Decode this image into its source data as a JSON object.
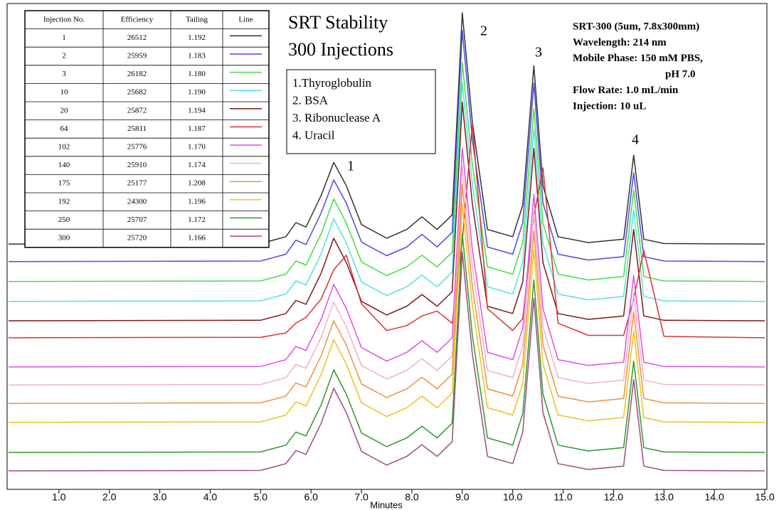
{
  "chart_data": {
    "type": "line",
    "title": [
      "SRT Stability",
      "300 Injections"
    ],
    "peak_legend": [
      "1.Thyroglobulin",
      "2. BSA",
      "3. Ribonuclease A",
      "4. Uracil"
    ],
    "conditions": [
      "SRT-300 (5um, 7.8x300mm)",
      "Wavelength: 214 nm",
      "Mobile Phase: 150 mM PBS,",
      "pH 7.0",
      "Flow Rate: 1.0 mL/min",
      "Injection: 10 uL"
    ],
    "peak_labels": [
      "1",
      "2",
      "3",
      "4"
    ],
    "x_label": "Minutes",
    "table": {
      "columns": [
        "Injection No.",
        "Efficiency",
        "Tailing",
        "Line"
      ],
      "rows": [
        [
          "1",
          "26512",
          "1.192"
        ],
        [
          "2",
          "25959",
          "1.183"
        ],
        [
          "3",
          "26182",
          "1.180"
        ],
        [
          "10",
          "25682",
          "1.190"
        ],
        [
          "20",
          "25872",
          "1.194"
        ],
        [
          "64",
          "25811",
          "1.187"
        ],
        [
          "102",
          "25776",
          "1.170"
        ],
        [
          "140",
          "25910",
          "1.174"
        ],
        [
          "175",
          "25177",
          "1.208"
        ],
        [
          "192",
          "24300",
          "1.196"
        ],
        [
          "250",
          "25707",
          "1.172"
        ],
        [
          "300",
          "25720",
          "1.166"
        ]
      ]
    },
    "x": [
      0,
      5.0,
      5.5,
      5.7,
      5.9,
      6.2,
      6.45,
      6.7,
      7.0,
      7.5,
      7.9,
      8.2,
      8.5,
      8.8,
      9.0,
      9.2,
      9.5,
      10.0,
      10.2,
      10.42,
      10.6,
      10.9,
      11.5,
      12.2,
      12.4,
      12.6,
      13.0,
      15.0
    ],
    "xlim": [
      0,
      15
    ],
    "xticks": [
      {
        "value": 1,
        "label": "1.0"
      },
      {
        "value": 2,
        "label": "2.0"
      },
      {
        "value": 3,
        "label": "3.0"
      },
      {
        "value": 4,
        "label": "4.0"
      },
      {
        "value": 5,
        "label": "5.0"
      },
      {
        "value": 6,
        "label": "6.0"
      },
      {
        "value": 7,
        "label": "7.0"
      },
      {
        "value": 8,
        "label": "8.0"
      },
      {
        "value": 9,
        "label": "9.0"
      },
      {
        "value": 10,
        "label": "10.0"
      },
      {
        "value": 11,
        "label": "11.0"
      },
      {
        "value": 12,
        "label": "12.0"
      },
      {
        "value": 13,
        "label": "13.0"
      },
      {
        "value": 14,
        "label": "14.0"
      },
      {
        "value": 15,
        "label": "15.0"
      }
    ],
    "ylim": [
      0,
      100
    ],
    "series": [
      {
        "color": "#333333",
        "values": [
          50.5,
          50.6,
          52,
          54.9,
          54,
          60.5,
          67.3,
          62.5,
          54.5,
          51.7,
          53.5,
          56.1,
          53.5,
          56.5,
          98.1,
          75.5,
          53.5,
          52,
          58.5,
          87.2,
          62.5,
          52,
          50.8,
          51.5,
          68.8,
          51.5,
          50.6,
          50.5
        ]
      },
      {
        "color": "#4a4ae8",
        "values": [
          46.9,
          47,
          48.4,
          51.3,
          50.4,
          56.9,
          63.7,
          58.9,
          50.9,
          48.1,
          49.9,
          52.5,
          49.9,
          52.9,
          94.5,
          71.9,
          49.9,
          48.4,
          54.9,
          83.6,
          58.9,
          48.4,
          47.2,
          47.9,
          65.2,
          47.9,
          47,
          46.9
        ]
      },
      {
        "color": "#44dd44",
        "values": [
          42.8,
          42.9,
          44.3,
          47,
          46.2,
          52.6,
          59.8,
          54.8,
          46.8,
          44,
          45.8,
          48.2,
          45.8,
          48.8,
          87.8,
          66.8,
          45.8,
          44.3,
          50.8,
          78.3,
          54.8,
          44.3,
          43.1,
          43.8,
          61.6,
          43.8,
          42.9,
          42.8
        ]
      },
      {
        "color": "#55e0e0",
        "values": [
          38.7,
          38.8,
          40.2,
          42.9,
          42.1,
          48.5,
          55.7,
          50.7,
          42.7,
          39.9,
          41.7,
          44.1,
          41.7,
          44.7,
          83.7,
          62.7,
          41.7,
          40.2,
          46.7,
          74.2,
          50.7,
          40.2,
          39,
          39.7,
          57.5,
          39.7,
          38.8,
          38.7
        ]
      },
      {
        "color": "#7a1a1a",
        "values": [
          34.7,
          34.8,
          36.2,
          38.9,
          38.1,
          44.5,
          51.7,
          46.7,
          38.7,
          35.9,
          37.7,
          40.1,
          37.7,
          40.7,
          79.7,
          58.7,
          37.7,
          36.2,
          42.7,
          70.2,
          46.7,
          36.2,
          35,
          35.7,
          53.5,
          35.7,
          34.8,
          34.7
        ]
      },
      {
        "color": "#e03030",
        "values": [
          31.2,
          31.3,
          32.2,
          34.2,
          35.4,
          39.2,
          45.2,
          48.2,
          38.2,
          32.7,
          33.7,
          35.7,
          36.7,
          34.2,
          51.2,
          75.2,
          37.2,
          32.7,
          35.2,
          56.2,
          66.2,
          34.2,
          31.7,
          31.7,
          39.2,
          49.2,
          31.5,
          31.2
        ]
      },
      {
        "color": "#e050e0",
        "values": [
          25.2,
          25.3,
          26.7,
          29.4,
          28.6,
          35,
          42.2,
          37.2,
          29.2,
          26.4,
          28.2,
          30.6,
          28.2,
          31.2,
          70.2,
          49.2,
          28.2,
          26.7,
          33.2,
          60.7,
          37.2,
          26.7,
          25.5,
          26.2,
          44,
          26.2,
          25.3,
          25.2
        ]
      },
      {
        "color": "#f0b0c8",
        "values": [
          21.5,
          21.6,
          23,
          25.7,
          24.9,
          31.3,
          38.5,
          33.5,
          25.5,
          22.7,
          24.5,
          26.9,
          24.5,
          27.5,
          66.5,
          45.5,
          24.5,
          23,
          29.5,
          57,
          33.5,
          23,
          21.8,
          22.5,
          40.3,
          22.5,
          21.6,
          21.5
        ]
      },
      {
        "color": "#f09040",
        "values": [
          17.7,
          17.8,
          19.2,
          21.9,
          21.1,
          27.5,
          34.7,
          29.7,
          21.7,
          18.9,
          20.7,
          23.1,
          20.7,
          23.7,
          62.7,
          41.7,
          20.7,
          19.2,
          25.7,
          53.2,
          29.7,
          19.2,
          18,
          18.7,
          36.5,
          18.7,
          17.8,
          17.7
        ]
      },
      {
        "color": "#f0c020",
        "values": [
          13.8,
          13.9,
          15.3,
          18,
          17.2,
          23.6,
          30.8,
          25.8,
          17.8,
          15,
          16.8,
          19.2,
          16.8,
          19.8,
          58.8,
          37.8,
          16.8,
          15.3,
          21.8,
          49.3,
          25.8,
          15.3,
          14.1,
          14.8,
          32.6,
          14.8,
          13.9,
          13.8
        ]
      },
      {
        "color": "#2a9a2a",
        "values": [
          7.6,
          7.7,
          9.1,
          11.8,
          11,
          17.4,
          24.6,
          19.6,
          11.6,
          8.8,
          10.6,
          13,
          10.6,
          13.6,
          52.6,
          31.6,
          10.6,
          9.1,
          15.6,
          43.1,
          19.6,
          9.1,
          7.9,
          8.6,
          26.4,
          8.6,
          7.7,
          7.6
        ]
      },
      {
        "color": "#a04a80",
        "values": [
          3.8,
          3.9,
          5.3,
          8,
          7.2,
          13.6,
          20.8,
          15.8,
          7.8,
          5,
          6.8,
          9.2,
          6.8,
          9.8,
          48.8,
          27.8,
          6.8,
          5.3,
          11.8,
          39.3,
          15.8,
          5.3,
          4.1,
          4.8,
          22.6,
          4.8,
          3.9,
          3.8
        ]
      }
    ]
  }
}
